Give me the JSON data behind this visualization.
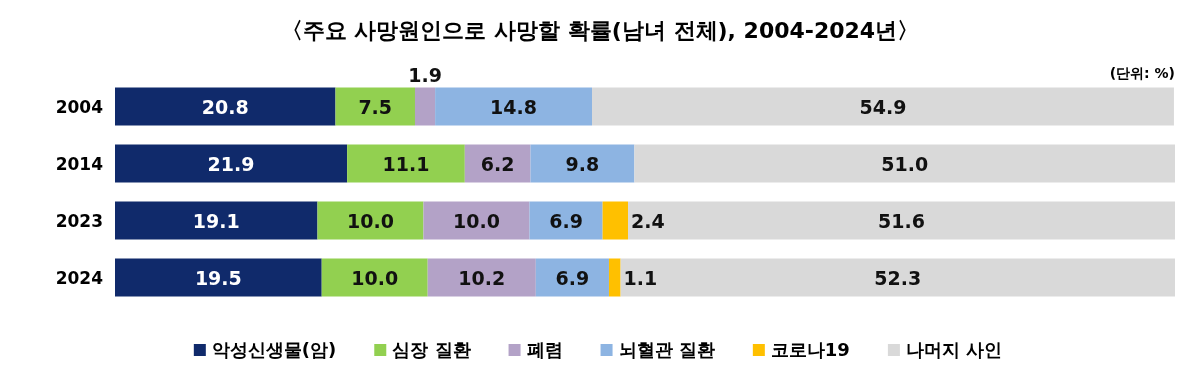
{
  "chart_data": {
    "type": "bar",
    "title": "〈주요 사망원인으로 사망할 확률(남녀 전체), 2004-2024년〉",
    "orientation": "horizontal",
    "stacked": true,
    "legend": "bottom",
    "categories": [
      "2004",
      "2014",
      "2023",
      "2024"
    ],
    "series": [
      {
        "name": "악성신생물(암)",
        "color": "#102a6b",
        "values": [
          20.8,
          21.9,
          19.1,
          19.5
        ],
        "value_labels": [
          "20.8",
          "21.9",
          "19.1",
          "19.5"
        ]
      },
      {
        "name": "심장 질환",
        "color": "#92d050",
        "values": [
          7.5,
          11.1,
          10.0,
          10.0
        ],
        "value_labels": [
          "7.5",
          "11.1",
          "10.0",
          "10.0"
        ]
      },
      {
        "name": "폐렴",
        "color": "#b3a2c7",
        "values": [
          1.9,
          6.2,
          10.0,
          10.2
        ],
        "value_labels": [
          "1.9",
          "6.2",
          "10.0",
          "10.2"
        ]
      },
      {
        "name": "뇌혈관 질환",
        "color": "#8db4e2",
        "values": [
          14.8,
          9.8,
          6.9,
          6.9
        ],
        "value_labels": [
          "14.8",
          "9.8",
          "6.9",
          "6.9"
        ]
      },
      {
        "name": "코로나19",
        "color": "#ffc000",
        "values": [
          null,
          null,
          2.4,
          1.1
        ],
        "value_labels": [
          null,
          null,
          "2.4",
          "1.1"
        ]
      },
      {
        "name": "나머지 사인",
        "color": "#d9d9d9",
        "values": [
          54.9,
          51.0,
          51.6,
          52.3
        ],
        "value_labels": [
          "54.9",
          "51.0",
          "51.6",
          "52.3"
        ]
      }
    ],
    "annotations": [
      "(단위: %)"
    ]
  }
}
